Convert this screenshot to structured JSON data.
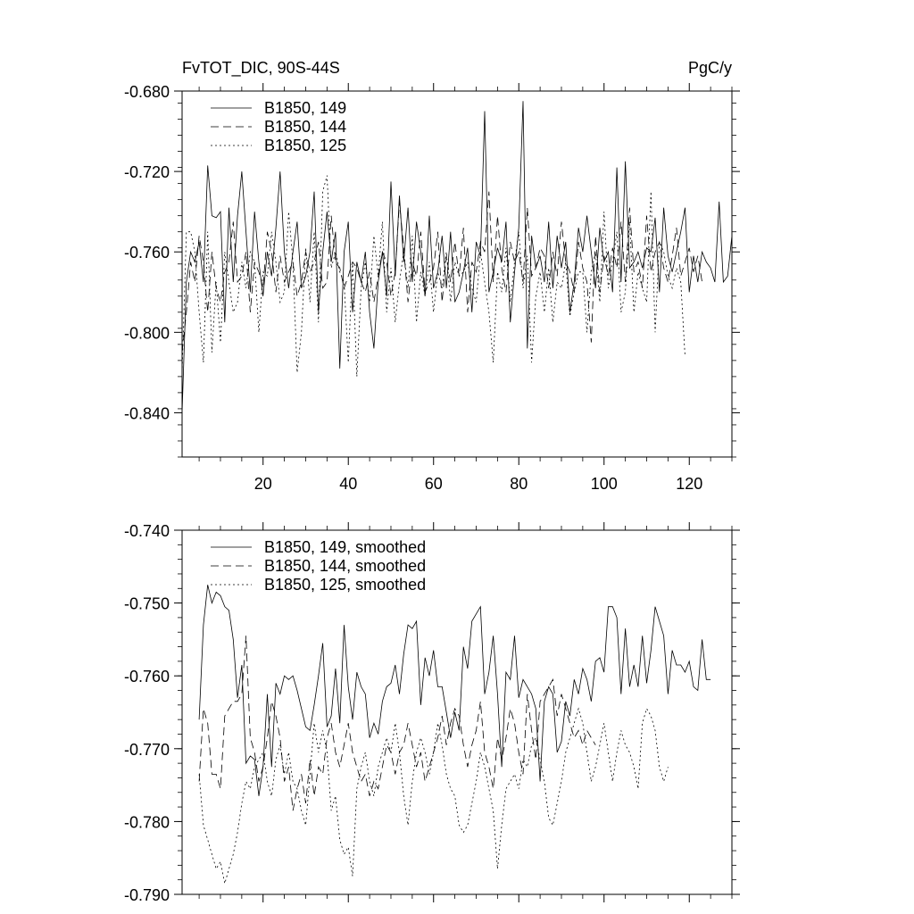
{
  "chart_data": [
    {
      "type": "line",
      "title": "FvTOT_DIC, 90S-44S",
      "units": "PgC/y",
      "xlabel": "",
      "ylabel": "",
      "xlim": [
        1,
        130
      ],
      "ylim": [
        -0.862,
        -0.68
      ],
      "x_ticks": [
        20,
        40,
        60,
        80,
        100,
        120
      ],
      "x_tick_labels": [
        "20",
        "40",
        "60",
        "80",
        "100",
        "120"
      ],
      "y_ticks": [
        -0.68,
        -0.72,
        -0.76,
        -0.8,
        -0.84
      ],
      "y_tick_labels": [
        "-0.680",
        "-0.720",
        "-0.760",
        "-0.800",
        "-0.840"
      ],
      "grid": false,
      "legend_position": "top-left",
      "series": [
        {
          "name": "B1850, 149",
          "style": "solid",
          "x_start": 1,
          "values": [
            -0.84,
            -0.775,
            -0.76,
            -0.765,
            -0.755,
            -0.775,
            -0.717,
            -0.742,
            -0.743,
            -0.74,
            -0.795,
            -0.738,
            -0.775,
            -0.742,
            -0.72,
            -0.75,
            -0.78,
            -0.74,
            -0.765,
            -0.782,
            -0.76,
            -0.772,
            -0.748,
            -0.72,
            -0.76,
            -0.778,
            -0.76,
            -0.745,
            -0.778,
            -0.772,
            -0.76,
            -0.73,
            -0.79,
            -0.76,
            -0.74,
            -0.765,
            -0.75,
            -0.818,
            -0.76,
            -0.745,
            -0.79,
            -0.765,
            -0.775,
            -0.76,
            -0.79,
            -0.808,
            -0.775,
            -0.76,
            -0.782,
            -0.725,
            -0.772,
            -0.732,
            -0.765,
            -0.738,
            -0.775,
            -0.745,
            -0.76,
            -0.782,
            -0.742,
            -0.778,
            -0.77,
            -0.752,
            -0.778,
            -0.75,
            -0.785,
            -0.78,
            -0.77,
            -0.758,
            -0.79,
            -0.755,
            -0.762,
            -0.69,
            -0.78,
            -0.77,
            -0.758,
            -0.765,
            -0.745,
            -0.795,
            -0.77,
            -0.748,
            -0.685,
            -0.808,
            -0.752,
            -0.768,
            -0.762,
            -0.775,
            -0.745,
            -0.778,
            -0.752,
            -0.768,
            -0.755,
            -0.79,
            -0.775,
            -0.748,
            -0.76,
            -0.742,
            -0.76,
            -0.778,
            -0.748,
            -0.765,
            -0.76,
            -0.78,
            -0.718,
            -0.775,
            -0.715,
            -0.768,
            -0.765,
            -0.76,
            -0.768,
            -0.758,
            -0.76,
            -0.743,
            -0.78,
            -0.738,
            -0.762,
            -0.77,
            -0.76,
            -0.75,
            -0.738,
            -0.78,
            -0.762,
            -0.775,
            -0.76,
            -0.765,
            -0.768,
            -0.775,
            -0.735,
            -0.775,
            -0.772,
            -0.752
          ]
        },
        {
          "name": "B1850, 144",
          "style": "dashed",
          "x_start": 1,
          "values": [
            -0.81,
            -0.79,
            -0.765,
            -0.775,
            -0.752,
            -0.765,
            -0.79,
            -0.76,
            -0.778,
            -0.785,
            -0.77,
            -0.765,
            -0.745,
            -0.775,
            -0.772,
            -0.76,
            -0.79,
            -0.765,
            -0.77,
            -0.778,
            -0.75,
            -0.76,
            -0.78,
            -0.762,
            -0.775,
            -0.77,
            -0.765,
            -0.782,
            -0.775,
            -0.76,
            -0.77,
            -0.765,
            -0.755,
            -0.778,
            -0.775,
            -0.742,
            -0.765,
            -0.768,
            -0.778,
            -0.772,
            -0.765,
            -0.768,
            -0.775,
            -0.78,
            -0.77,
            -0.785,
            -0.772,
            -0.76,
            -0.765,
            -0.782,
            -0.77,
            -0.735,
            -0.758,
            -0.785,
            -0.765,
            -0.772,
            -0.75,
            -0.78,
            -0.775,
            -0.768,
            -0.75,
            -0.785,
            -0.762,
            -0.775,
            -0.755,
            -0.772,
            -0.748,
            -0.79,
            -0.765,
            -0.77,
            -0.755,
            -0.76,
            -0.73,
            -0.775,
            -0.742,
            -0.768,
            -0.78,
            -0.755,
            -0.765,
            -0.76,
            -0.775,
            -0.738,
            -0.772,
            -0.768,
            -0.758,
            -0.762,
            -0.778,
            -0.76,
            -0.772,
            -0.745,
            -0.765,
            -0.77,
            -0.78,
            -0.755,
            -0.768,
            -0.775,
            -0.805,
            -0.752,
            -0.78,
            -0.762,
            -0.772,
            -0.758,
            -0.768,
            -0.745,
            -0.775,
            -0.738,
            -0.77,
            -0.765,
            -0.778,
            -0.742,
            -0.77,
            -0.76,
            -0.755,
            -0.768,
            -0.775,
            -0.762,
            -0.748,
            -0.772,
            -0.765,
            -0.758,
            -0.77,
            -0.762,
            -0.775
          ]
        },
        {
          "name": "B1850, 125",
          "style": "dotted",
          "x_start": 1,
          "values": [
            -0.82,
            -0.75,
            -0.75,
            -0.76,
            -0.79,
            -0.815,
            -0.75,
            -0.81,
            -0.775,
            -0.805,
            -0.76,
            -0.775,
            -0.79,
            -0.785,
            -0.765,
            -0.778,
            -0.76,
            -0.765,
            -0.8,
            -0.77,
            -0.772,
            -0.75,
            -0.765,
            -0.785,
            -0.78,
            -0.74,
            -0.765,
            -0.82,
            -0.8,
            -0.758,
            -0.785,
            -0.75,
            -0.795,
            -0.73,
            -0.722,
            -0.768,
            -0.76,
            -0.77,
            -0.775,
            -0.815,
            -0.765,
            -0.822,
            -0.778,
            -0.765,
            -0.785,
            -0.752,
            -0.772,
            -0.745,
            -0.79,
            -0.768,
            -0.795,
            -0.775,
            -0.76,
            -0.778,
            -0.752,
            -0.795,
            -0.77,
            -0.782,
            -0.765,
            -0.79,
            -0.77,
            -0.778,
            -0.76,
            -0.785,
            -0.765,
            -0.772,
            -0.77,
            -0.765,
            -0.778,
            -0.785,
            -0.76,
            -0.775,
            -0.79,
            -0.815,
            -0.77,
            -0.78,
            -0.758,
            -0.785,
            -0.765,
            -0.75,
            -0.778,
            -0.762,
            -0.815,
            -0.782,
            -0.77,
            -0.79,
            -0.768,
            -0.795,
            -0.775,
            -0.778,
            -0.765,
            -0.792,
            -0.78,
            -0.77,
            -0.77,
            -0.8,
            -0.77,
            -0.76,
            -0.785,
            -0.74,
            -0.778,
            -0.765,
            -0.75,
            -0.79,
            -0.78,
            -0.745,
            -0.79,
            -0.77,
            -0.778,
            -0.785,
            -0.73,
            -0.8,
            -0.755,
            -0.76,
            -0.772,
            -0.778,
            -0.768,
            -0.775,
            -0.812
          ]
        }
      ],
      "legend": [
        "B1850, 149",
        "B1850, 144",
        "B1850, 125"
      ]
    },
    {
      "type": "line",
      "title": "",
      "xlabel": "",
      "ylabel": "",
      "xlim": [
        1,
        130
      ],
      "ylim": [
        -0.79,
        -0.74
      ],
      "x_ticks": [
        20,
        40,
        60,
        80,
        100,
        120
      ],
      "y_ticks": [
        -0.74,
        -0.75,
        -0.76,
        -0.77,
        -0.78,
        -0.79
      ],
      "y_tick_labels": [
        "-0.740",
        "-0.750",
        "-0.760",
        "-0.770",
        "-0.780",
        "-0.790"
      ],
      "grid": false,
      "legend_position": "top-left",
      "series": [
        {
          "name": "B1850, 149, smoothed",
          "style": "solid",
          "x_start": 5,
          "values": [
            -0.766,
            -0.753,
            -0.7475,
            -0.75,
            -0.7485,
            -0.749,
            -0.7505,
            -0.751,
            -0.755,
            -0.763,
            -0.7585,
            -0.772,
            -0.771,
            -0.7715,
            -0.7765,
            -0.7725,
            -0.7625,
            -0.7725,
            -0.761,
            -0.7625,
            -0.76,
            -0.7605,
            -0.76,
            -0.762,
            -0.7645,
            -0.767,
            -0.7675,
            -0.764,
            -0.76,
            -0.7555,
            -0.767,
            -0.7655,
            -0.759,
            -0.7665,
            -0.753,
            -0.7615,
            -0.766,
            -0.7595,
            -0.7615,
            -0.7625,
            -0.7685,
            -0.7665,
            -0.768,
            -0.7635,
            -0.7615,
            -0.761,
            -0.7585,
            -0.7625,
            -0.757,
            -0.753,
            -0.7535,
            -0.7525,
            -0.764,
            -0.7575,
            -0.76,
            -0.7565,
            -0.7615,
            -0.7615,
            -0.765,
            -0.7685,
            -0.765,
            -0.7675,
            -0.756,
            -0.759,
            -0.7525,
            -0.7515,
            -0.7505,
            -0.7625,
            -0.7595,
            -0.7545,
            -0.7625,
            -0.7725,
            -0.7595,
            -0.7605,
            -0.7545,
            -0.763,
            -0.7605,
            -0.7615,
            -0.7625,
            -0.7645,
            -0.7745,
            -0.7635,
            -0.7615,
            -0.7625,
            -0.7705,
            -0.769,
            -0.7635,
            -0.7655,
            -0.7605,
            -0.7625,
            -0.759,
            -0.7605,
            -0.7635,
            -0.758,
            -0.7575,
            -0.7595,
            -0.7505,
            -0.7505,
            -0.752,
            -0.7625,
            -0.7535,
            -0.7615,
            -0.7585,
            -0.7615,
            -0.7545,
            -0.761,
            -0.7565,
            -0.7505,
            -0.7525,
            -0.7545,
            -0.7625,
            -0.7565,
            -0.7585,
            -0.7585,
            -0.7595,
            -0.758,
            -0.7615,
            -0.762,
            -0.755,
            -0.7605,
            -0.7605
          ]
        },
        {
          "name": "B1850, 144, smoothed",
          "style": "dashed",
          "x_start": 5,
          "values": [
            -0.7745,
            -0.7645,
            -0.7665,
            -0.7735,
            -0.7735,
            -0.7755,
            -0.7655,
            -0.7645,
            -0.7635,
            -0.7635,
            -0.7625,
            -0.7545,
            -0.7685,
            -0.7705,
            -0.7745,
            -0.7725,
            -0.7685,
            -0.7635,
            -0.7655,
            -0.7685,
            -0.7745,
            -0.7725,
            -0.7785,
            -0.7755,
            -0.7735,
            -0.7775,
            -0.7715,
            -0.7765,
            -0.7725,
            -0.7735,
            -0.7685,
            -0.7665,
            -0.7705,
            -0.7725,
            -0.7695,
            -0.7665,
            -0.7705,
            -0.7725,
            -0.7745,
            -0.7735,
            -0.7765,
            -0.7745,
            -0.7755,
            -0.7725,
            -0.7695,
            -0.7705,
            -0.7735,
            -0.7705,
            -0.7695,
            -0.7665,
            -0.7695,
            -0.7725,
            -0.7705,
            -0.7745,
            -0.7725,
            -0.7705,
            -0.7685,
            -0.7655,
            -0.7695,
            -0.7665,
            -0.7645,
            -0.7655,
            -0.7695,
            -0.7725,
            -0.7695,
            -0.7675,
            -0.7635,
            -0.7705,
            -0.7725,
            -0.7755,
            -0.7685,
            -0.7715,
            -0.7685,
            -0.7645,
            -0.7665,
            -0.7705,
            -0.7735,
            -0.7625,
            -0.7675,
            -0.7715,
            -0.7635,
            -0.7625,
            -0.7615,
            -0.7605,
            -0.7655,
            -0.7625,
            -0.7645,
            -0.7665,
            -0.7685,
            -0.7675,
            -0.7695,
            -0.7675,
            -0.7685,
            -0.7695
          ]
        },
        {
          "name": "B1850, 125, smoothed",
          "style": "dotted",
          "x_start": 5,
          "values": [
            -0.7735,
            -0.7805,
            -0.7825,
            -0.7845,
            -0.7865,
            -0.7855,
            -0.7885,
            -0.7865,
            -0.7845,
            -0.7815,
            -0.7775,
            -0.7745,
            -0.7755,
            -0.7725,
            -0.7715,
            -0.7705,
            -0.7745,
            -0.7765,
            -0.7715,
            -0.7695,
            -0.7735,
            -0.7705,
            -0.7745,
            -0.7755,
            -0.7785,
            -0.7805,
            -0.7735,
            -0.7665,
            -0.7705,
            -0.7675,
            -0.7705,
            -0.7785,
            -0.7765,
            -0.7825,
            -0.7845,
            -0.7835,
            -0.7875,
            -0.7755,
            -0.7725,
            -0.7705,
            -0.7745,
            -0.7765,
            -0.7725,
            -0.7705,
            -0.7685,
            -0.7705,
            -0.7665,
            -0.7705,
            -0.7765,
            -0.7805,
            -0.7745,
            -0.7705,
            -0.7685,
            -0.7705,
            -0.7735,
            -0.7705,
            -0.7665,
            -0.7695,
            -0.7735,
            -0.7755,
            -0.7765,
            -0.7805,
            -0.7815,
            -0.7805,
            -0.7775,
            -0.7745,
            -0.7705,
            -0.7725,
            -0.7755,
            -0.7785,
            -0.7865,
            -0.7805,
            -0.7755,
            -0.7745,
            -0.7735,
            -0.7755,
            -0.7715,
            -0.7725,
            -0.7695,
            -0.7685,
            -0.7715,
            -0.7745,
            -0.7795,
            -0.7805,
            -0.7775,
            -0.7745,
            -0.7705,
            -0.7685,
            -0.7665,
            -0.7645,
            -0.7665,
            -0.7705,
            -0.7745,
            -0.7725,
            -0.7695,
            -0.7665,
            -0.7705,
            -0.7745,
            -0.7705,
            -0.7675,
            -0.7695,
            -0.7705,
            -0.7725,
            -0.7755,
            -0.7665,
            -0.7645,
            -0.7655,
            -0.7675,
            -0.7725,
            -0.7745,
            -0.7725
          ]
        }
      ],
      "legend": [
        "B1850, 149, smoothed",
        "B1850, 144, smoothed",
        "B1850, 125, smoothed"
      ]
    }
  ]
}
